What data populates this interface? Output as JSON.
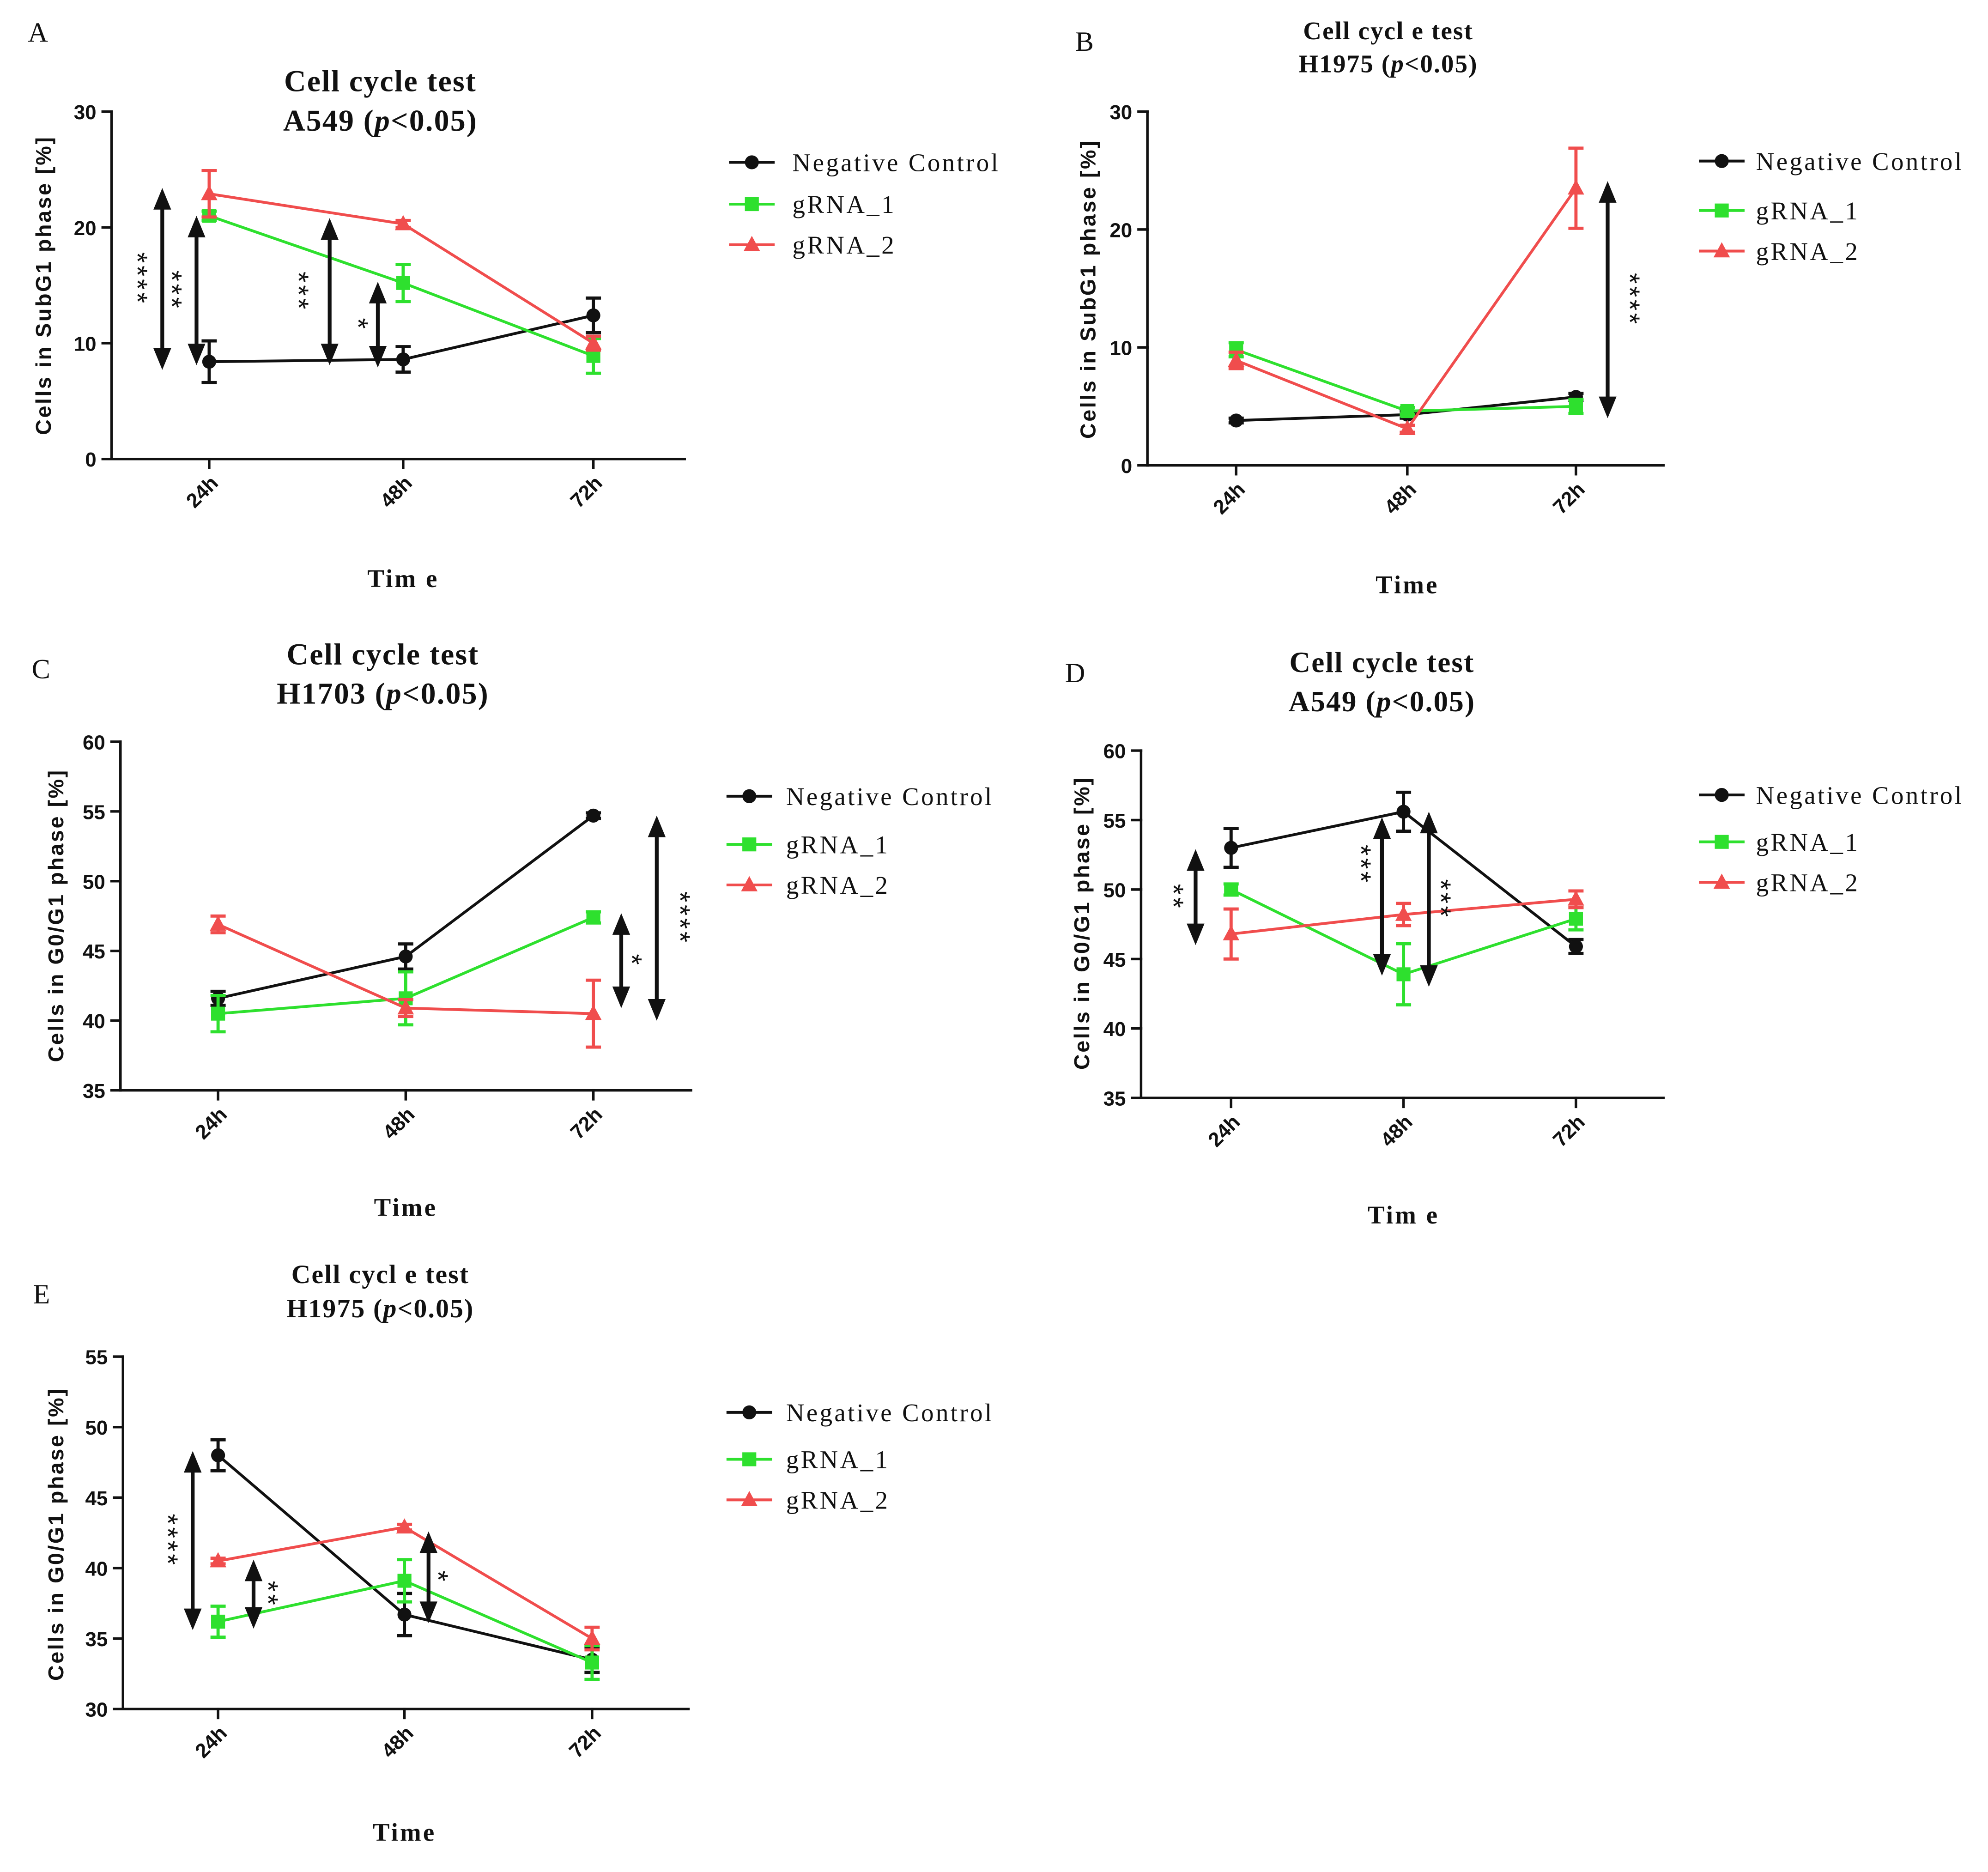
{
  "chart_data": [
    {
      "panel": "A",
      "type": "line",
      "title": "Cell cycle test",
      "subtitle": {
        "pre": "A549 (",
        "italic": "p",
        "post": "<0.05)"
      },
      "xlabel": "Tim e",
      "ylabel": "Cells in SubG1 phase [%]",
      "categories": [
        "24h",
        "48h",
        "72h"
      ],
      "ylim": [
        0,
        30
      ],
      "yticks": [
        0,
        10,
        20,
        30
      ],
      "legend_position": "right",
      "series": [
        {
          "name": "Negative Control",
          "color": "#111111",
          "marker": "circle",
          "values": [
            8.4,
            8.6,
            12.4
          ],
          "errors": [
            1.8,
            1.1,
            1.5
          ]
        },
        {
          "name": "gRNA_1",
          "color": "#2ee02e",
          "marker": "square",
          "values": [
            21.0,
            15.2,
            8.9
          ],
          "errors": [
            0.4,
            1.6,
            1.5
          ]
        },
        {
          "name": "gRNA_2",
          "color": "#f04d4d",
          "marker": "triangle",
          "values": [
            22.9,
            20.3,
            10.0
          ],
          "errors": [
            2.0,
            0.3,
            0.6
          ]
        }
      ],
      "annotations": [
        {
          "label": "****",
          "from": 7.7,
          "to": 23.4
        },
        {
          "label": "***",
          "from": 8.1,
          "to": 21.0
        },
        {
          "label": "***",
          "from": 8.1,
          "to": 20.8
        },
        {
          "label": "*",
          "from": 7.9,
          "to": 15.3
        }
      ]
    },
    {
      "panel": "B",
      "type": "line",
      "title": "Cell cycl e test",
      "subtitle": {
        "pre": "H1975 (",
        "italic": "p",
        "post": "<0.05)"
      },
      "xlabel": "Time",
      "ylabel": "Cells in SubG1 phase [%]",
      "categories": [
        "24h",
        "48h",
        "72h"
      ],
      "ylim": [
        0,
        30
      ],
      "yticks": [
        0,
        10,
        20,
        30
      ],
      "legend_position": "right",
      "series": [
        {
          "name": "Negative Control",
          "color": "#111111",
          "marker": "circle",
          "values": [
            3.8,
            4.3,
            5.8
          ],
          "errors": [
            0.2,
            0.3,
            0.3
          ]
        },
        {
          "name": "gRNA_1",
          "color": "#2ee02e",
          "marker": "square",
          "values": [
            9.8,
            4.6,
            5.0
          ],
          "errors": [
            0.6,
            0.3,
            0.6
          ]
        },
        {
          "name": "gRNA_2",
          "color": "#f04d4d",
          "marker": "triangle",
          "values": [
            8.9,
            3.1,
            23.5
          ],
          "errors": [
            0.7,
            0.3,
            3.4
          ]
        }
      ],
      "annotations": [
        {
          "label": "****",
          "from": 4.0,
          "to": 24.1
        }
      ]
    },
    {
      "panel": "C",
      "type": "line",
      "title": "Cell cycle test",
      "subtitle": {
        "pre": "H1703 (",
        "italic": "p",
        "post": "<0.05)"
      },
      "xlabel": "Time",
      "ylabel": "Cells in G0/G1 phase [%]",
      "categories": [
        "24h",
        "48h",
        "72h"
      ],
      "ylim": [
        35,
        60
      ],
      "yticks": [
        35,
        40,
        45,
        50,
        55,
        60
      ],
      "legend_position": "right",
      "series": [
        {
          "name": "Negative Control",
          "color": "#111111",
          "marker": "circle",
          "values": [
            41.6,
            44.6,
            54.7
          ],
          "errors": [
            0.5,
            0.9,
            0.2
          ]
        },
        {
          "name": "gRNA_1",
          "color": "#2ee02e",
          "marker": "square",
          "values": [
            40.5,
            41.6,
            47.4
          ],
          "errors": [
            1.3,
            1.9,
            0.4
          ]
        },
        {
          "name": "gRNA_2",
          "color": "#f04d4d",
          "marker": "triangle",
          "values": [
            46.9,
            40.9,
            40.5
          ],
          "errors": [
            0.6,
            0.6,
            2.4
          ]
        }
      ],
      "annotations": [
        {
          "label": "*",
          "from": 40.9,
          "to": 47.7
        },
        {
          "label": "****",
          "from": 40.0,
          "to": 54.7
        }
      ]
    },
    {
      "panel": "D",
      "type": "line",
      "title": "Cell cycle test",
      "subtitle": {
        "pre": "A549 (",
        "italic": "p",
        "post": "<0.05)"
      },
      "xlabel": "Tim e",
      "ylabel": "Cells in G0/G1 phase [%]",
      "categories": [
        "24h",
        "48h",
        "72h"
      ],
      "ylim": [
        35,
        60
      ],
      "yticks": [
        35,
        40,
        45,
        50,
        55,
        60
      ],
      "legend_position": "right",
      "series": [
        {
          "name": "Negative Control",
          "color": "#111111",
          "marker": "circle",
          "values": [
            53.0,
            55.6,
            45.9
          ],
          "errors": [
            1.4,
            1.4,
            0.5
          ]
        },
        {
          "name": "gRNA_1",
          "color": "#2ee02e",
          "marker": "square",
          "values": [
            50.0,
            43.9,
            47.9
          ],
          "errors": [
            0.4,
            2.2,
            0.8
          ]
        },
        {
          "name": "gRNA_2",
          "color": "#f04d4d",
          "marker": "triangle",
          "values": [
            46.8,
            48.2,
            49.3
          ],
          "errors": [
            1.8,
            0.8,
            0.6
          ]
        }
      ],
      "annotations": [
        {
          "label": "**",
          "from": 46.0,
          "to": 52.9
        },
        {
          "label": "***",
          "from": 43.8,
          "to": 55.2
        },
        {
          "label": "***",
          "from": 43.0,
          "to": 55.6
        }
      ]
    },
    {
      "panel": "E",
      "type": "line",
      "title": "Cell cycl e test",
      "subtitle": {
        "pre": "H1975 (",
        "italic": "p",
        "post": "<0.05)"
      },
      "xlabel": "Time",
      "ylabel": "Cells in G0/G1 phase [%]",
      "categories": [
        "24h",
        "48h",
        "72h"
      ],
      "ylim": [
        30,
        55
      ],
      "yticks": [
        30,
        35,
        40,
        45,
        50,
        55
      ],
      "legend_position": "right",
      "series": [
        {
          "name": "Negative Control",
          "color": "#111111",
          "marker": "circle",
          "values": [
            48.0,
            36.7,
            33.5
          ],
          "errors": [
            1.1,
            1.5,
            0.9
          ]
        },
        {
          "name": "gRNA_1",
          "color": "#2ee02e",
          "marker": "square",
          "values": [
            36.2,
            39.1,
            33.3
          ],
          "errors": [
            1.1,
            1.5,
            1.2
          ]
        },
        {
          "name": "gRNA_2",
          "color": "#f04d4d",
          "marker": "triangle",
          "values": [
            40.5,
            42.9,
            35.0
          ],
          "errors": [
            0.2,
            0.2,
            0.8
          ]
        }
      ],
      "annotations": [
        {
          "label": "****",
          "from": 35.6,
          "to": 48.3
        },
        {
          "label": "**",
          "from": 35.7,
          "to": 40.6
        },
        {
          "label": "*",
          "from": 36.1,
          "to": 42.6
        }
      ]
    }
  ]
}
